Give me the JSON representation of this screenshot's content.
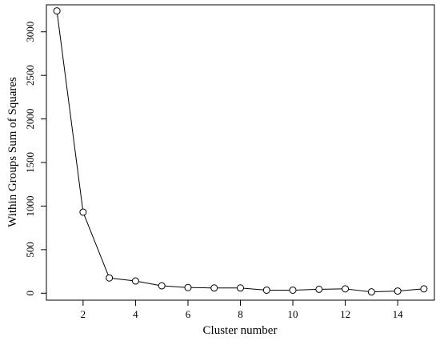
{
  "chart_data": {
    "type": "line",
    "title": "",
    "xlabel": "Cluster number",
    "ylabel": "Within Groups Sum of Squares",
    "x": [
      1,
      2,
      3,
      4,
      5,
      6,
      7,
      8,
      9,
      10,
      11,
      12,
      13,
      14,
      15
    ],
    "series": [
      {
        "values": [
          3240,
          930,
          175,
          140,
          85,
          65,
          60,
          60,
          35,
          35,
          45,
          50,
          15,
          25,
          50
        ]
      }
    ],
    "xlim": [
      0.6,
      15.4
    ],
    "ylim": [
      -80,
      3310
    ],
    "xticks": [
      2,
      4,
      6,
      8,
      10,
      12,
      14
    ],
    "yticks": [
      0,
      500,
      1000,
      1500,
      2000,
      2500,
      3000
    ],
    "grid": false,
    "markers": "open-circle",
    "line_color": "#000000"
  }
}
